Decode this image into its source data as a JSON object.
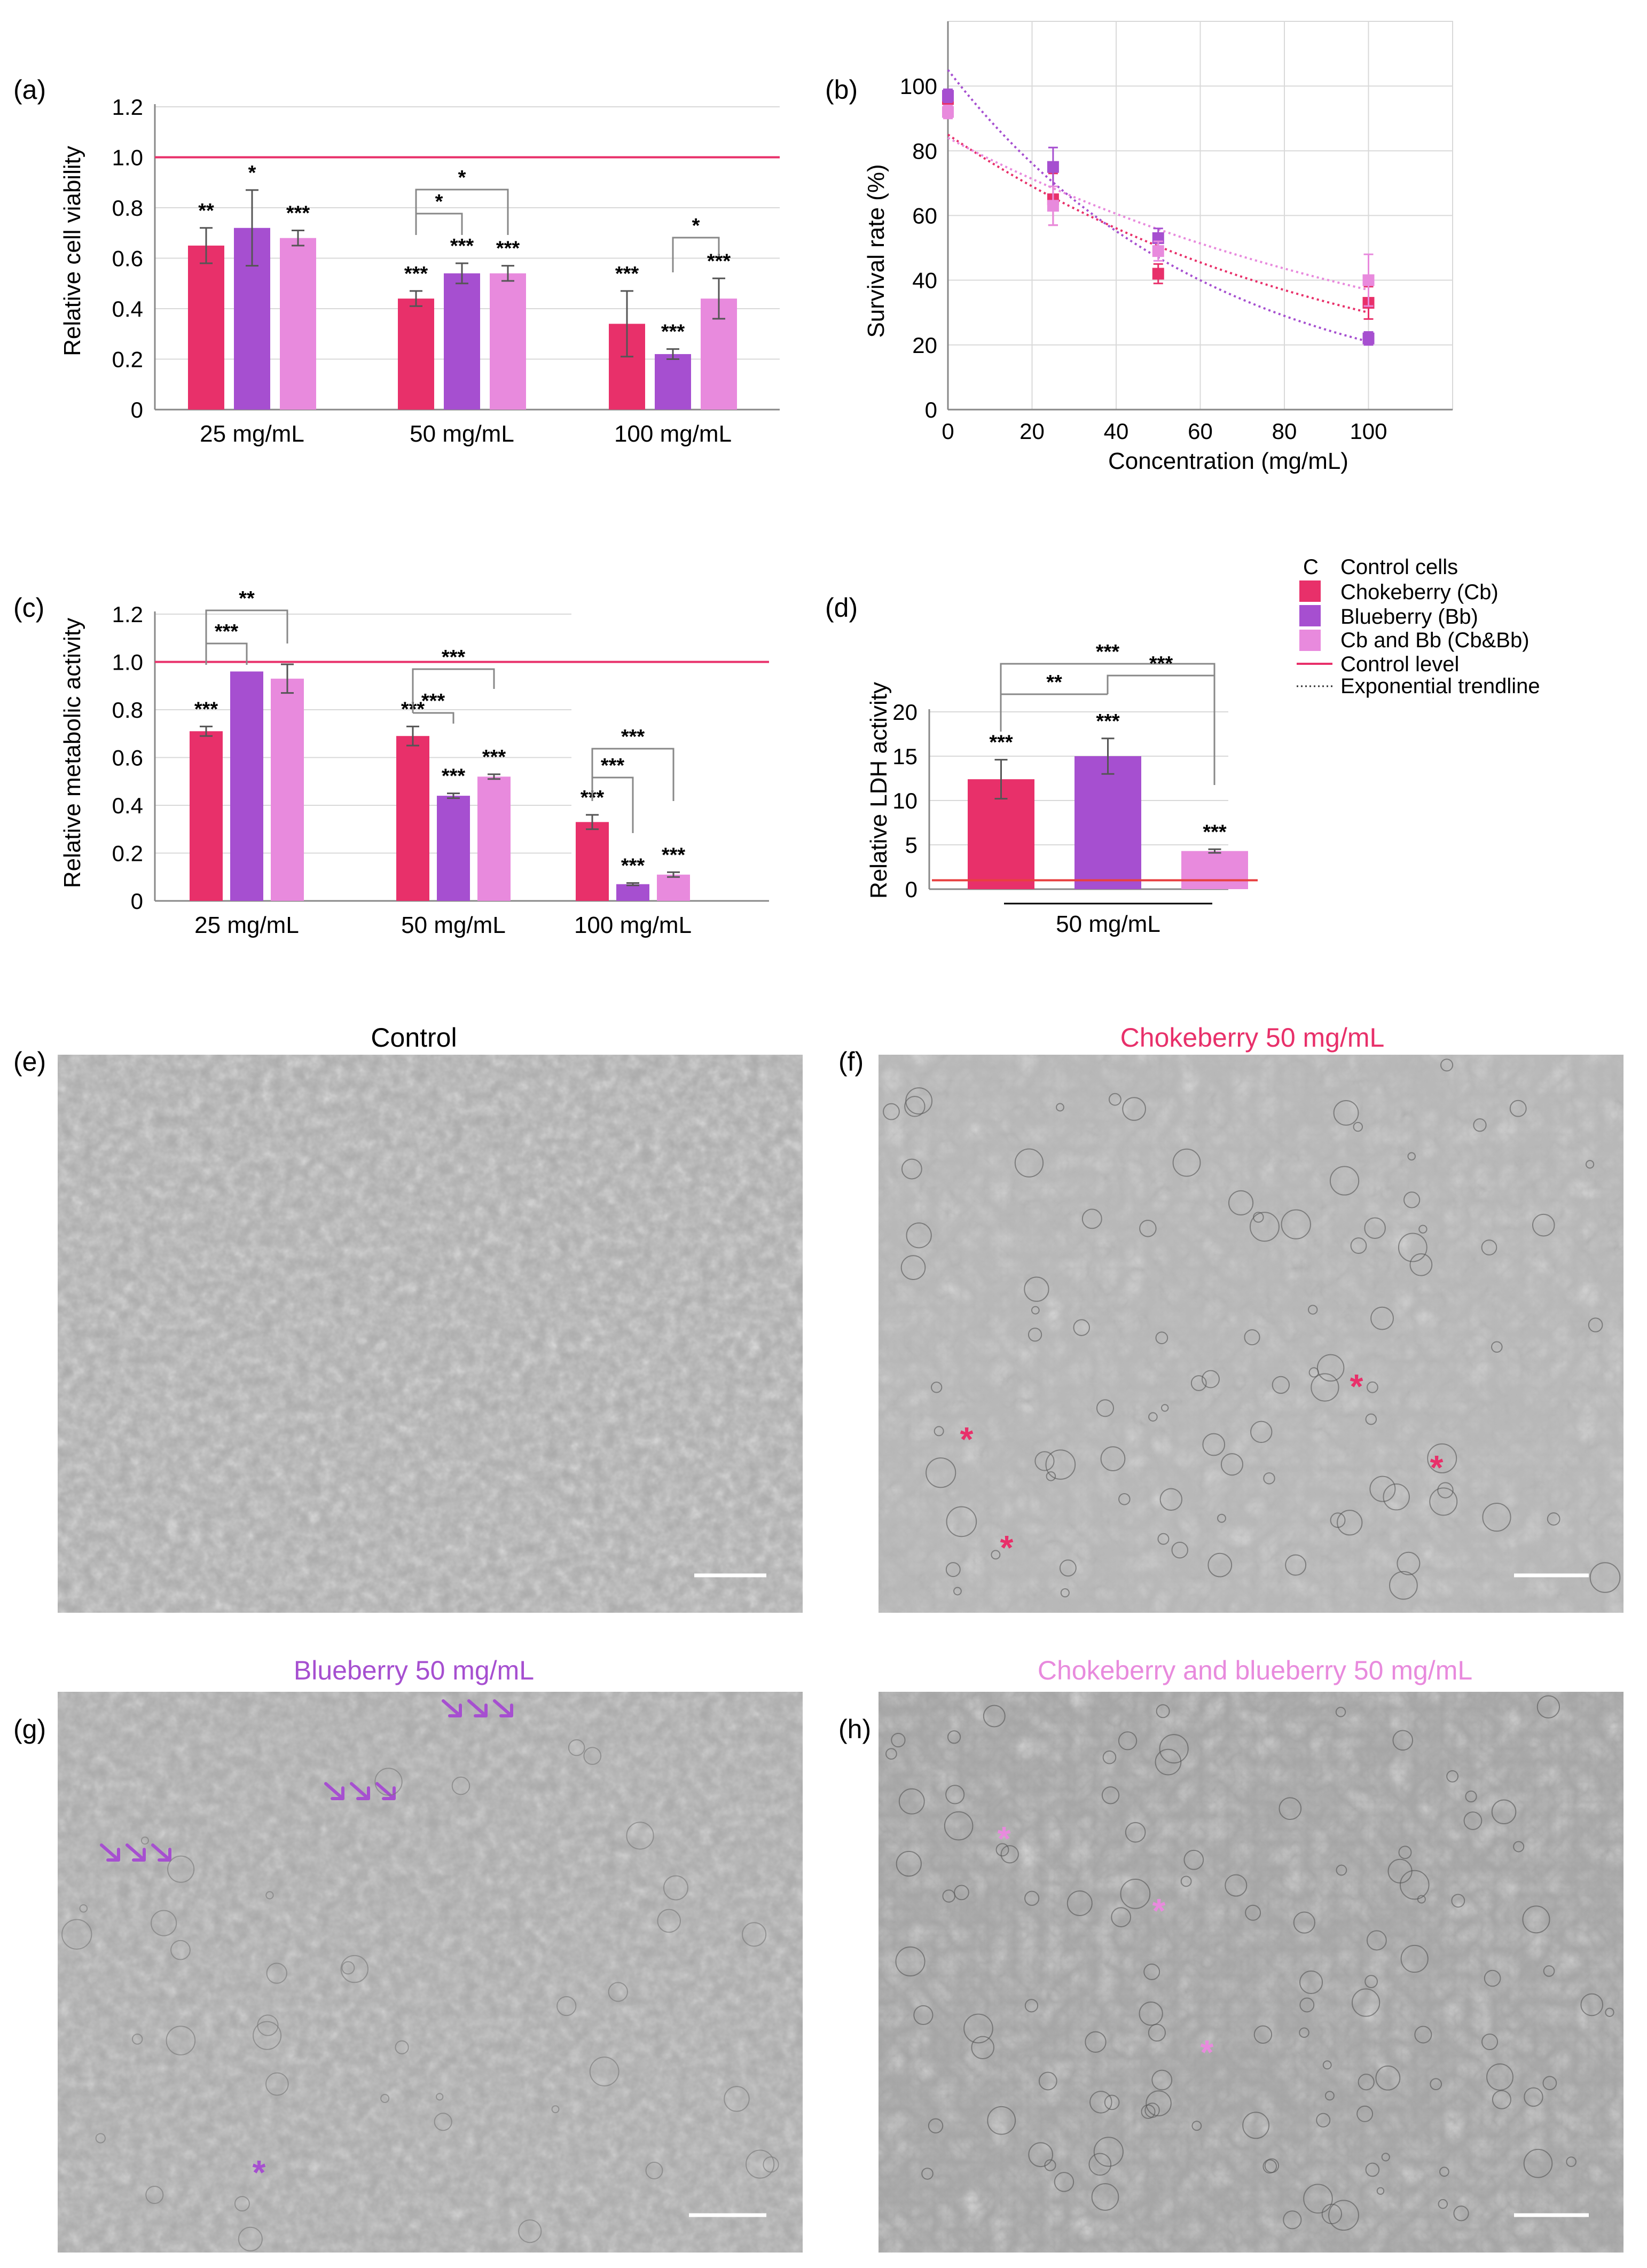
{
  "colors": {
    "chokeberry": "#E8306A",
    "blueberry": "#A64FD0",
    "combo": "#E88ADD",
    "control_line": "#E8306A",
    "ldh_control_line": "#E84040",
    "axis": "#888888",
    "grid": "#d9d9d9",
    "bracket": "#888888",
    "error": "#555555"
  },
  "panels": {
    "a": {
      "label": "(a)",
      "ylabel": "Relative cell viability",
      "yticks": [
        "0",
        "0.2",
        "0.4",
        "0.6",
        "0.8",
        "1.0",
        "1.2"
      ],
      "groups": [
        "25 mg/mL",
        "50 mg/mL",
        "100 mg/mL"
      ],
      "significance": {
        "bars": [
          [
            "**",
            "*",
            "***"
          ],
          [
            "***",
            "***",
            "***"
          ],
          [
            "***",
            "***",
            "***"
          ]
        ],
        "brackets": [
          "*",
          "*",
          "*"
        ]
      }
    },
    "b": {
      "label": "(b)",
      "ylabel": "Survival rate (%)",
      "xlabel": "Concentration (mg/mL)",
      "yticks": [
        "0",
        "20",
        "40",
        "60",
        "80",
        "100"
      ],
      "xticks": [
        "0",
        "20",
        "40",
        "60",
        "80",
        "100"
      ]
    },
    "c": {
      "label": "(c)",
      "ylabel": "Relative metabolic activity",
      "yticks": [
        "0",
        "0.2",
        "0.4",
        "0.6",
        "0.8",
        "1.0",
        "1.2"
      ],
      "groups": [
        "25 mg/mL",
        "50 mg/mL",
        "100 mg/mL"
      ],
      "significance": {
        "bars": [
          [
            "***",
            "",
            ""
          ],
          [
            "***",
            "***",
            "***"
          ],
          [
            "***",
            "***",
            "***"
          ]
        ],
        "brackets": [
          "**",
          "***",
          "***",
          "***",
          "***",
          "***"
        ]
      }
    },
    "d": {
      "label": "(d)",
      "ylabel": "Relative LDH activity",
      "yticks": [
        "0",
        "5",
        "10",
        "15",
        "20"
      ],
      "group": "50 mg/mL",
      "significance": {
        "bars": [
          "***",
          "***",
          "***"
        ],
        "brackets": [
          "***",
          "**",
          "***"
        ]
      }
    }
  },
  "legend": {
    "control_symbol": "C",
    "items": [
      "Control cells",
      "Chokeberry (Cb)",
      "Blueberry (Bb)",
      "Cb and Bb (Cb&Bb)",
      "Control level",
      "Exponential trendline"
    ]
  },
  "micrographs": {
    "e": {
      "label": "(e)",
      "title": "Control",
      "title_color": "#000000"
    },
    "f": {
      "label": "(f)",
      "title": "Chokeberry 50 mg/mL",
      "title_color": "#E8306A",
      "marker": "*"
    },
    "g": {
      "label": "(g)",
      "title": "Blueberry 50 mg/mL",
      "title_color": "#A64FD0",
      "marker": "*"
    },
    "h": {
      "label": "(h)",
      "title": "Chokeberry and blueberry 50 mg/mL",
      "title_color": "#E88ADD",
      "marker": "*"
    }
  },
  "chart_data": [
    {
      "panel": "a",
      "type": "bar",
      "ylabel": "Relative cell viability",
      "categories": [
        "25 mg/mL",
        "50 mg/mL",
        "100 mg/mL"
      ],
      "series": [
        {
          "name": "Chokeberry (Cb)",
          "values": [
            0.65,
            0.44,
            0.34
          ],
          "errors": [
            0.07,
            0.03,
            0.13
          ]
        },
        {
          "name": "Blueberry (Bb)",
          "values": [
            0.72,
            0.54,
            0.22
          ],
          "errors": [
            0.15,
            0.04,
            0.02
          ]
        },
        {
          "name": "Cb and Bb (Cb&Bb)",
          "values": [
            0.68,
            0.54,
            0.44
          ],
          "errors": [
            0.03,
            0.03,
            0.08
          ]
        }
      ],
      "control_level": 1.0,
      "ylim": [
        0,
        1.2
      ]
    },
    {
      "panel": "b",
      "type": "scatter",
      "xlabel": "Concentration (mg/mL)",
      "ylabel": "Survival rate (%)",
      "series": [
        {
          "name": "Chokeberry (Cb)",
          "x": [
            0,
            25,
            50,
            100
          ],
          "y": [
            96,
            65,
            42,
            33
          ],
          "errors": [
            2,
            8,
            3,
            5
          ]
        },
        {
          "name": "Blueberry (Bb)",
          "x": [
            0,
            25,
            50,
            100
          ],
          "y": [
            97,
            75,
            53,
            22
          ],
          "errors": [
            2,
            6,
            3,
            2
          ]
        },
        {
          "name": "Cb and Bb (Cb&Bb)",
          "x": [
            0,
            25,
            50,
            100
          ],
          "y": [
            92,
            63,
            49,
            40
          ],
          "errors": [
            2,
            6,
            3,
            8
          ]
        }
      ],
      "trendlines": [
        {
          "series": "Chokeberry (Cb)",
          "start": 85,
          "end": 30
        },
        {
          "series": "Blueberry (Bb)",
          "start": 105,
          "end": 21
        },
        {
          "series": "Cb and Bb (Cb&Bb)",
          "start": 84,
          "end": 37
        }
      ],
      "xlim": [
        0,
        120
      ],
      "ylim": [
        0,
        120
      ]
    },
    {
      "panel": "c",
      "type": "bar",
      "ylabel": "Relative metabolic activity",
      "categories": [
        "25 mg/mL",
        "50 mg/mL",
        "100 mg/mL"
      ],
      "series": [
        {
          "name": "Chokeberry (Cb)",
          "values": [
            0.71,
            0.69,
            0.33
          ],
          "errors": [
            0.02,
            0.04,
            0.03
          ]
        },
        {
          "name": "Blueberry (Bb)",
          "values": [
            0.96,
            0.44,
            0.07
          ],
          "errors": [
            0.0,
            0.01,
            0.005
          ]
        },
        {
          "name": "Cb and Bb (Cb&Bb)",
          "values": [
            0.93,
            0.52,
            0.11
          ],
          "errors": [
            0.06,
            0.01,
            0.01
          ]
        }
      ],
      "control_level": 1.0,
      "ylim": [
        0,
        1.2
      ]
    },
    {
      "panel": "d",
      "type": "bar",
      "ylabel": "Relative LDH activity",
      "categories": [
        "50 mg/mL"
      ],
      "series": [
        {
          "name": "Chokeberry (Cb)",
          "values": [
            12.4
          ],
          "errors": [
            2.2
          ]
        },
        {
          "name": "Blueberry (Bb)",
          "values": [
            15.0
          ],
          "errors": [
            2.0
          ]
        },
        {
          "name": "Cb and Bb (Cb&Bb)",
          "values": [
            4.3
          ],
          "errors": [
            0.2
          ]
        }
      ],
      "control_level": 1.0,
      "ylim": [
        0,
        20
      ]
    }
  ]
}
